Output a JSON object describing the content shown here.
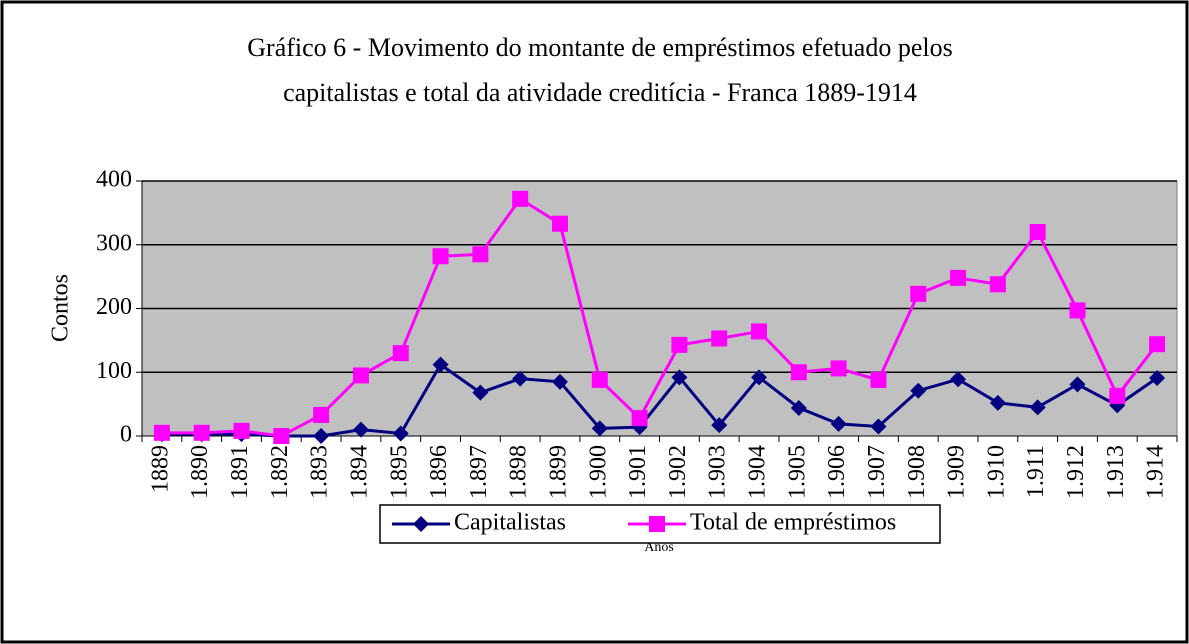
{
  "chart_data": {
    "type": "line",
    "title": [
      "Gráfico 6 - Movimento do montante de empréstimos efetuado pelos",
      "capitalistas e total da atividade creditícia - Franca 1889-1914"
    ],
    "y_label": "Contos",
    "x_label": "Anos",
    "categories": [
      "1889",
      "1.890",
      "1.891",
      "1.892",
      "1.893",
      "1.894",
      "1.895",
      "1.896",
      "1.897",
      "1.898",
      "1.899",
      "1.900",
      "1.901",
      "1.902",
      "1.903",
      "1.904",
      "1.905",
      "1.906",
      "1.907",
      "1.908",
      "1.909",
      "1.910",
      "1.911",
      "1.912",
      "1.913",
      "1.914"
    ],
    "series": [
      {
        "name": "Capitalistas",
        "color": "#000080",
        "marker": "diamond",
        "values": [
          3,
          3,
          3,
          0,
          0,
          10,
          4,
          112,
          68,
          90,
          85,
          12,
          14,
          92,
          17,
          92,
          44,
          19,
          15,
          71,
          89,
          52,
          45,
          81,
          48,
          91
        ]
      },
      {
        "name": "Total de empréstimos",
        "color": "#ff00ff",
        "marker": "square",
        "values": [
          5,
          5,
          8,
          0,
          33,
          95,
          130,
          282,
          285,
          372,
          333,
          88,
          28,
          143,
          153,
          164,
          100,
          106,
          88,
          223,
          248,
          238,
          320,
          197,
          63,
          144
        ]
      }
    ],
    "ylim": [
      0,
      400
    ],
    "yticks": [
      0,
      100,
      200,
      300,
      400
    ],
    "grid": true,
    "legend": "bottom"
  }
}
